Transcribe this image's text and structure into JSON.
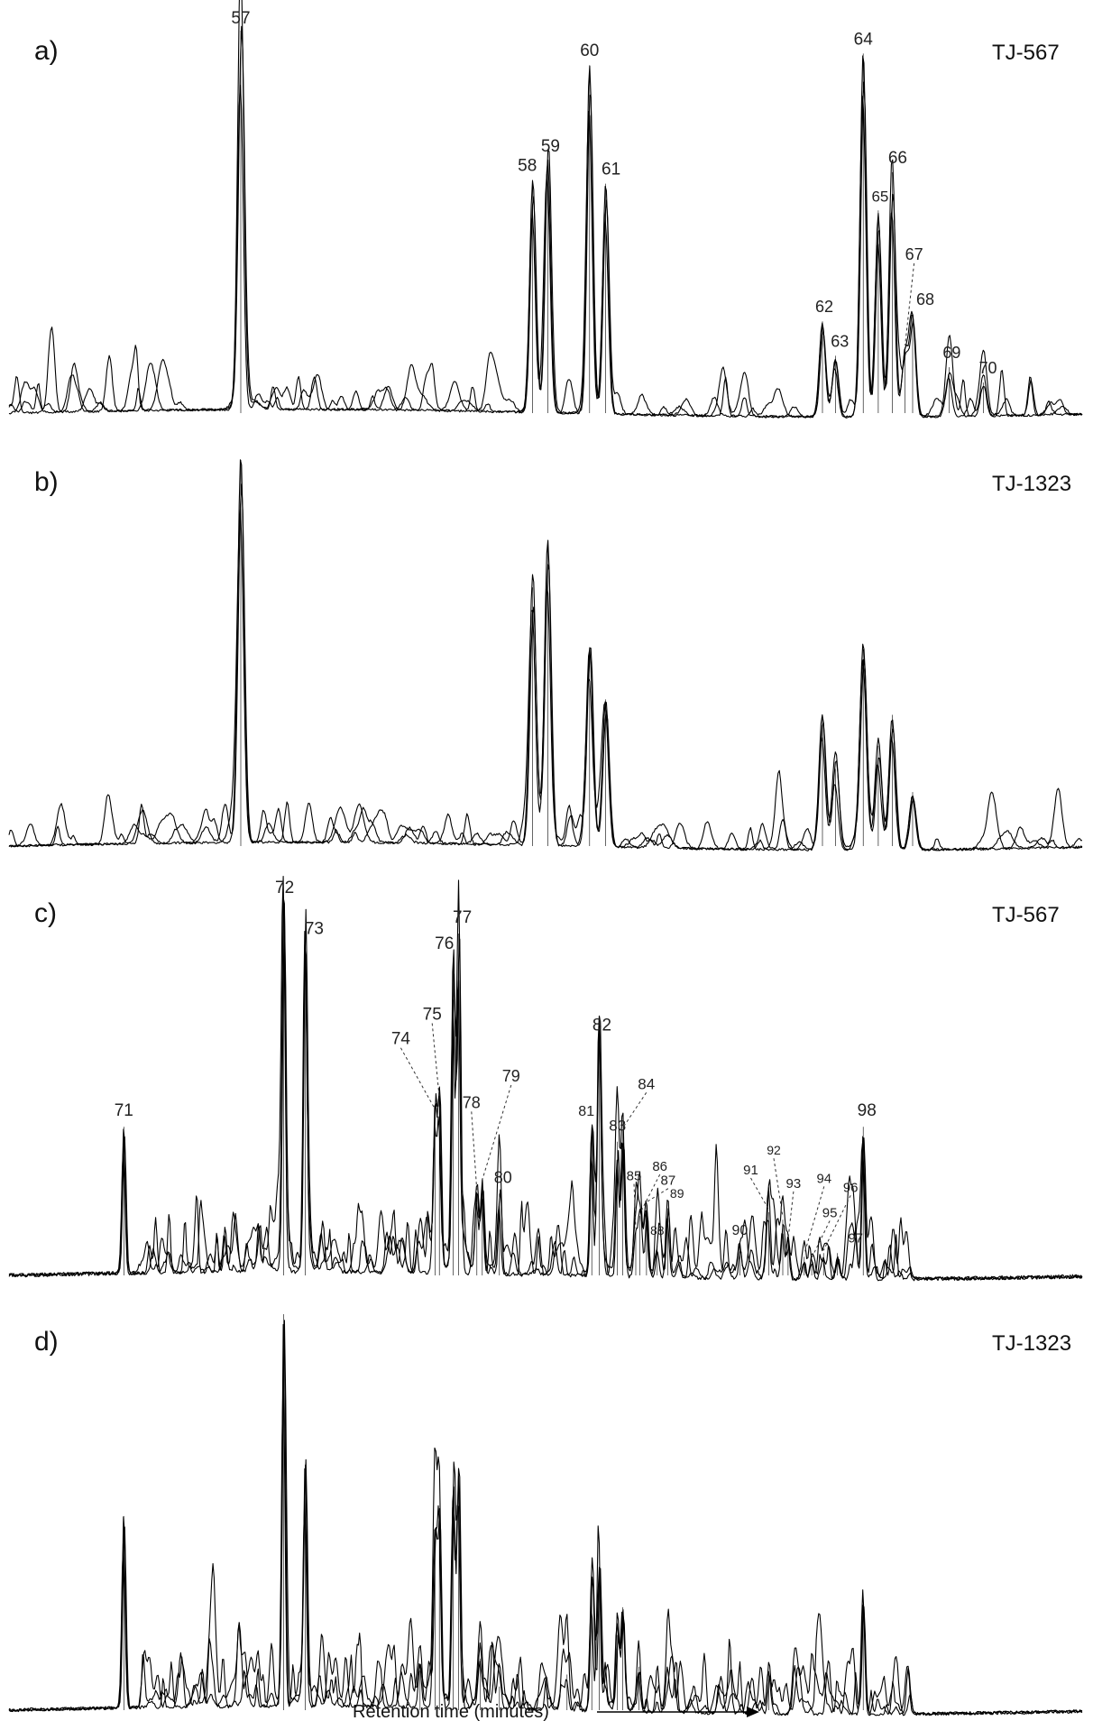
{
  "figure": {
    "xlabel": "Retention time (minutes)"
  },
  "chart_data": [
    {
      "type": "line",
      "panel": "a)",
      "sample": "TJ-567",
      "peaks": [
        {
          "label": "57",
          "rt": 0.216,
          "height": 1.0
        },
        {
          "label": "58",
          "rt": 0.488,
          "height": 0.61
        },
        {
          "label": "59",
          "rt": 0.502,
          "height": 0.66
        },
        {
          "label": "60",
          "rt": 0.541,
          "height": 0.91
        },
        {
          "label": "61",
          "rt": 0.556,
          "height": 0.6
        },
        {
          "label": "62",
          "rt": 0.758,
          "height": 0.24
        },
        {
          "label": "63",
          "rt": 0.77,
          "height": 0.15
        },
        {
          "label": "64",
          "rt": 0.796,
          "height": 0.94
        },
        {
          "label": "65",
          "rt": 0.81,
          "height": 0.53
        },
        {
          "label": "66",
          "rt": 0.823,
          "height": 0.63
        },
        {
          "label": "67",
          "rt": 0.835,
          "height": 0.17
        },
        {
          "label": "68",
          "rt": 0.842,
          "height": 0.26
        },
        {
          "label": "69",
          "rt": 0.876,
          "height": 0.12
        },
        {
          "label": "70",
          "rt": 0.908,
          "height": 0.08
        }
      ]
    },
    {
      "type": "line",
      "panel": "b)",
      "sample": "TJ-1323",
      "peaks": [
        {
          "label": "",
          "rt": 0.216,
          "height": 1.0
        },
        {
          "label": "",
          "rt": 0.488,
          "height": 0.67
        },
        {
          "label": "",
          "rt": 0.502,
          "height": 0.79
        },
        {
          "label": "",
          "rt": 0.541,
          "height": 0.51
        },
        {
          "label": "",
          "rt": 0.556,
          "height": 0.38
        },
        {
          "label": "",
          "rt": 0.758,
          "height": 0.34
        },
        {
          "label": "",
          "rt": 0.77,
          "height": 0.2
        },
        {
          "label": "",
          "rt": 0.796,
          "height": 0.51
        },
        {
          "label": "",
          "rt": 0.81,
          "height": 0.26
        },
        {
          "label": "",
          "rt": 0.823,
          "height": 0.34
        },
        {
          "label": "",
          "rt": 0.842,
          "height": 0.14
        }
      ]
    },
    {
      "type": "line",
      "panel": "c)",
      "sample": "TJ-567",
      "peaks": [
        {
          "label": "71",
          "rt": 0.107,
          "height": 0.4
        },
        {
          "label": "72",
          "rt": 0.256,
          "height": 1.0
        },
        {
          "label": "73",
          "rt": 0.276,
          "height": 0.89
        },
        {
          "label": "74",
          "rt": 0.397,
          "height": 0.44
        },
        {
          "label": "75",
          "rt": 0.401,
          "height": 0.47
        },
        {
          "label": "76",
          "rt": 0.414,
          "height": 0.85
        },
        {
          "label": "77",
          "rt": 0.419,
          "height": 0.92
        },
        {
          "label": "78",
          "rt": 0.436,
          "height": 0.22
        },
        {
          "label": "79",
          "rt": 0.441,
          "height": 0.25
        },
        {
          "label": "80",
          "rt": 0.457,
          "height": 0.22
        },
        {
          "label": "81",
          "rt": 0.543,
          "height": 0.4
        },
        {
          "label": "82",
          "rt": 0.55,
          "height": 0.63
        },
        {
          "label": "83",
          "rt": 0.567,
          "height": 0.36
        },
        {
          "label": "84",
          "rt": 0.572,
          "height": 0.39
        },
        {
          "label": "85",
          "rt": 0.584,
          "height": 0.12
        },
        {
          "label": "86",
          "rt": 0.588,
          "height": 0.16
        },
        {
          "label": "87",
          "rt": 0.594,
          "height": 0.19
        },
        {
          "label": "88",
          "rt": 0.604,
          "height": 0.08
        },
        {
          "label": "89",
          "rt": 0.614,
          "height": 0.18
        },
        {
          "label": "90",
          "rt": 0.681,
          "height": 0.08
        },
        {
          "label": "91",
          "rt": 0.708,
          "height": 0.17
        },
        {
          "label": "92",
          "rt": 0.721,
          "height": 0.15
        },
        {
          "label": "93",
          "rt": 0.726,
          "height": 0.09
        },
        {
          "label": "94",
          "rt": 0.741,
          "height": 0.05
        },
        {
          "label": "95",
          "rt": 0.748,
          "height": 0.04
        },
        {
          "label": "96",
          "rt": 0.759,
          "height": 0.06
        },
        {
          "label": "97",
          "rt": 0.772,
          "height": 0.06
        },
        {
          "label": "98",
          "rt": 0.796,
          "height": 0.4
        }
      ]
    },
    {
      "type": "line",
      "panel": "d)",
      "sample": "TJ-1323",
      "peaks": [
        {
          "label": "",
          "rt": 0.107,
          "height": 0.49
        },
        {
          "label": "",
          "rt": 0.256,
          "height": 1.0
        },
        {
          "label": "",
          "rt": 0.276,
          "height": 0.62
        },
        {
          "label": "",
          "rt": 0.383,
          "height": 0.1
        },
        {
          "label": "",
          "rt": 0.397,
          "height": 0.46
        },
        {
          "label": "",
          "rt": 0.401,
          "height": 0.51
        },
        {
          "label": "",
          "rt": 0.414,
          "height": 0.57
        },
        {
          "label": "",
          "rt": 0.419,
          "height": 0.58
        },
        {
          "label": "",
          "rt": 0.439,
          "height": 0.13
        },
        {
          "label": "",
          "rt": 0.457,
          "height": 0.06
        },
        {
          "label": "",
          "rt": 0.52,
          "height": 0.09
        },
        {
          "label": "",
          "rt": 0.543,
          "height": 0.3
        },
        {
          "label": "",
          "rt": 0.55,
          "height": 0.36
        },
        {
          "label": "",
          "rt": 0.567,
          "height": 0.19
        },
        {
          "label": "",
          "rt": 0.572,
          "height": 0.26
        },
        {
          "label": "",
          "rt": 0.587,
          "height": 0.11
        },
        {
          "label": "",
          "rt": 0.708,
          "height": 0.09
        },
        {
          "label": "",
          "rt": 0.796,
          "height": 0.29
        }
      ]
    }
  ]
}
